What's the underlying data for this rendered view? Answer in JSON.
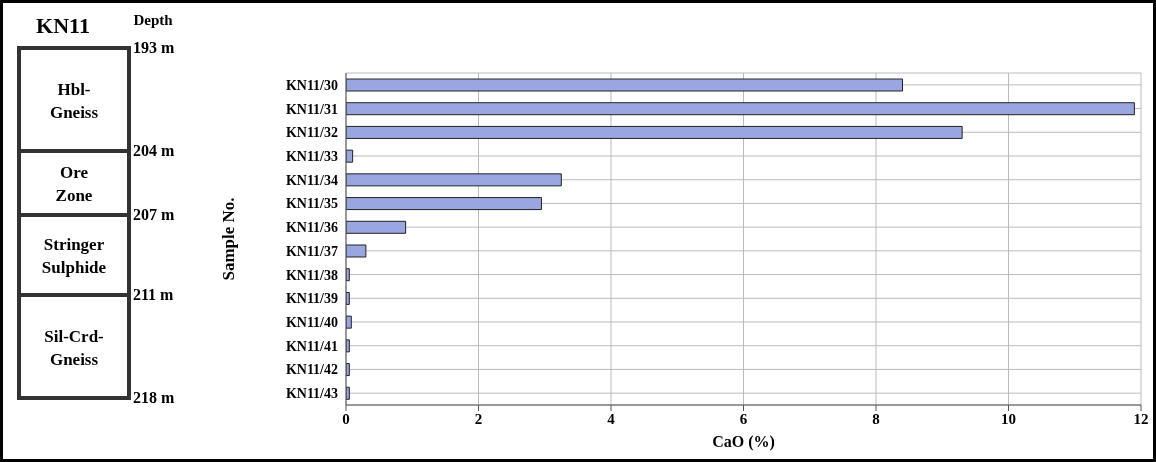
{
  "chart_data": [
    {
      "type": "other",
      "title": "KN11",
      "annotations": [
        "Depth",
        "193 m",
        "204 m",
        "207 m",
        "211 m",
        "218 m",
        "Hbl-Gneiss",
        "Ore Zone",
        "Stringer Sulphide",
        "Sil-Crd-Gneiss"
      ]
    },
    {
      "type": "bar",
      "orientation": "horizontal",
      "xlabel": "CaO (%)",
      "ylabel": "Sample No.",
      "categories": [
        "KN11/30",
        "KN11/31",
        "KN11/32",
        "KN11/33",
        "KN11/34",
        "KN11/35",
        "KN11/36",
        "KN11/37",
        "KN11/38",
        "KN11/39",
        "KN11/40",
        "KN11/41",
        "KN11/42",
        "KN11/43"
      ],
      "values": [
        8.4,
        11.9,
        9.3,
        0.1,
        3.25,
        2.95,
        0.9,
        0.3,
        0.05,
        0.05,
        0.08,
        0.05,
        0.05,
        0.05
      ],
      "color": "#9aa6e0",
      "xlim": [
        0,
        12
      ],
      "xticks": [
        0,
        2,
        4,
        6,
        8,
        10,
        12
      ],
      "grid": true
    }
  ]
}
